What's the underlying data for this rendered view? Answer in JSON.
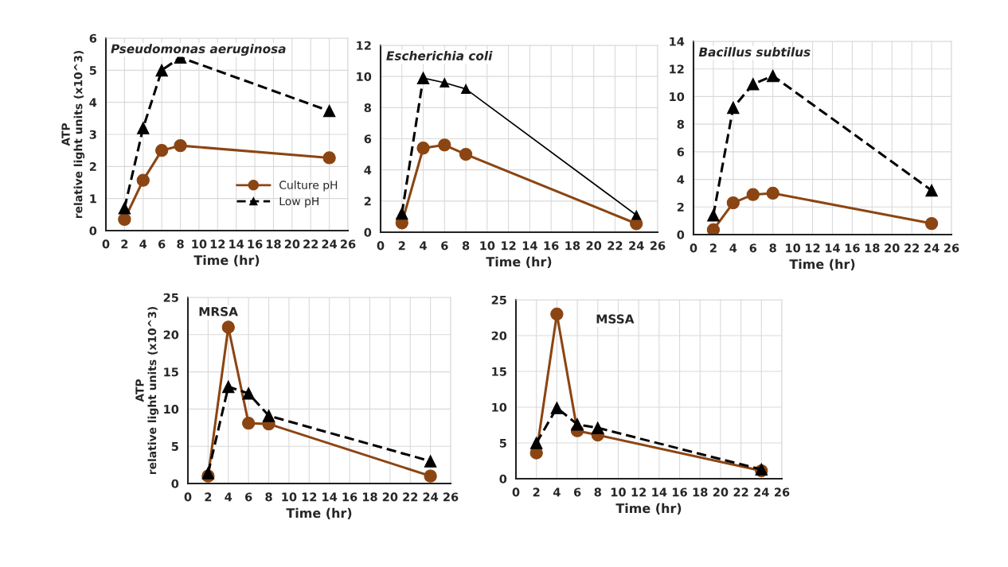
{
  "chart_data": [
    {
      "type": "line",
      "title": "Pseudomonas aeruginosa",
      "xlabel": "Time (hr)",
      "ylabel": "ATP\nrelative light units (x10^3)",
      "x": [
        2,
        4,
        6,
        8,
        24
      ],
      "xlim": [
        0,
        26
      ],
      "xticks": [
        0,
        2,
        4,
        6,
        8,
        10,
        12,
        14,
        16,
        18,
        20,
        22,
        24,
        26
      ],
      "ylim": [
        0,
        6
      ],
      "yticks": [
        0,
        1,
        2,
        3,
        4,
        5,
        6
      ],
      "grid": true,
      "legend": "right",
      "series": [
        {
          "name": "Culture pH",
          "color": "#8b4513",
          "marker": "circle",
          "line_style": "solid",
          "values": [
            0.35,
            1.57,
            2.5,
            2.65,
            2.27
          ]
        },
        {
          "name": "Low pH",
          "color": "#000000",
          "marker": "triangle",
          "line_style": "dashed",
          "values": [
            0.7,
            3.2,
            5.0,
            5.4,
            3.73
          ]
        }
      ]
    },
    {
      "type": "line",
      "title": "Escherichia coli",
      "xlabel": "Time (hr)",
      "x": [
        2,
        4,
        6,
        8,
        24
      ],
      "xlim": [
        0,
        26
      ],
      "xticks": [
        0,
        2,
        4,
        6,
        8,
        10,
        12,
        14,
        16,
        18,
        20,
        22,
        24,
        26
      ],
      "ylim": [
        0,
        12
      ],
      "yticks": [
        0,
        2,
        4,
        6,
        8,
        10,
        12
      ],
      "grid": true,
      "series": [
        {
          "color": "#8b4513",
          "marker": "circle",
          "line_style": "solid",
          "values": [
            0.6,
            5.4,
            5.6,
            5.0,
            0.55
          ]
        },
        {
          "color": "#000000",
          "marker": "triangle",
          "line_style": "dashed",
          "x": [
            2,
            4
          ],
          "values": [
            1.2,
            9.9
          ]
        },
        {
          "color": "#000000",
          "marker": "triangle",
          "line_style": "solid",
          "x": [
            4,
            6,
            8,
            24
          ],
          "values": [
            9.9,
            9.6,
            9.2,
            1.1
          ]
        }
      ]
    },
    {
      "type": "line",
      "title": "Bacillus subtilus",
      "xlabel": "Time (hr)",
      "x": [
        2,
        4,
        6,
        8,
        24
      ],
      "xlim": [
        0,
        26
      ],
      "xticks": [
        0,
        2,
        4,
        6,
        8,
        10,
        12,
        14,
        16,
        18,
        20,
        22,
        24,
        26
      ],
      "ylim": [
        0,
        14
      ],
      "yticks": [
        0,
        2,
        4,
        6,
        8,
        10,
        12,
        14
      ],
      "grid": true,
      "series": [
        {
          "color": "#8b4513",
          "marker": "circle",
          "line_style": "solid",
          "values": [
            0.35,
            2.3,
            2.9,
            3.0,
            0.8
          ]
        },
        {
          "color": "#000000",
          "marker": "triangle",
          "line_style": "dashed",
          "values": [
            1.4,
            9.2,
            10.9,
            11.5,
            3.2
          ]
        }
      ]
    },
    {
      "type": "line",
      "title": "MRSA",
      "xlabel": "Time (hr)",
      "ylabel": "ATP\nrelative light units (x10^3)",
      "x": [
        2,
        4,
        6,
        8,
        24
      ],
      "xlim": [
        0,
        26
      ],
      "xticks": [
        0,
        2,
        4,
        6,
        8,
        10,
        12,
        14,
        16,
        18,
        20,
        22,
        24,
        26
      ],
      "ylim": [
        0,
        25
      ],
      "yticks": [
        0,
        5,
        10,
        15,
        20,
        25
      ],
      "grid": true,
      "series": [
        {
          "color": "#8b4513",
          "marker": "circle",
          "line_style": "solid",
          "values": [
            1.0,
            21,
            8.1,
            8.0,
            1.0
          ]
        },
        {
          "color": "#000000",
          "marker": "triangle",
          "line_style": "dashed",
          "values": [
            1.4,
            13,
            12.1,
            9.1,
            3.0
          ]
        }
      ]
    },
    {
      "type": "line",
      "title": "MSSA",
      "xlabel": "Time (hr)",
      "x": [
        2,
        4,
        6,
        8,
        24
      ],
      "xlim": [
        0,
        26
      ],
      "xticks": [
        0,
        2,
        4,
        6,
        8,
        10,
        12,
        14,
        16,
        18,
        20,
        22,
        24,
        26
      ],
      "ylim": [
        0,
        25
      ],
      "yticks": [
        0,
        5,
        10,
        15,
        20,
        25
      ],
      "grid": true,
      "series": [
        {
          "color": "#8b4513",
          "marker": "circle",
          "line_style": "solid",
          "values": [
            3.6,
            23,
            6.7,
            6.1,
            1.1
          ]
        },
        {
          "color": "#000000",
          "marker": "triangle",
          "line_style": "dashed",
          "values": [
            5.0,
            9.9,
            7.6,
            7.1,
            1.3
          ]
        }
      ]
    }
  ]
}
